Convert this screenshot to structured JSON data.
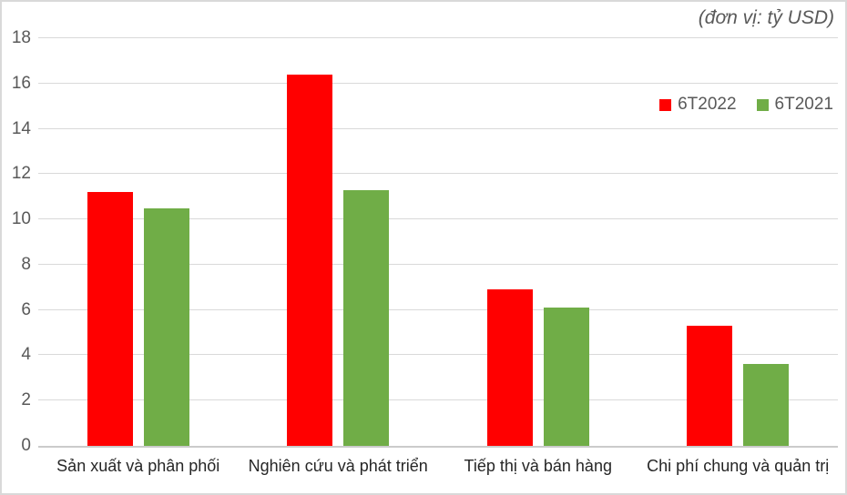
{
  "chart_data": {
    "type": "bar",
    "title": "",
    "unit_note": "(đơn vị: tỷ USD)",
    "categories": [
      "Sản xuất và phân phối",
      "Nghiên cứu và phát triển",
      "Tiếp thị và bán hàng",
      "Chi phí chung và quản trị"
    ],
    "series": [
      {
        "name": "6T2022",
        "color": "#FF0000",
        "values": [
          11.2,
          16.4,
          6.9,
          5.3
        ]
      },
      {
        "name": "6T2021",
        "color": "#70AD47",
        "values": [
          10.5,
          11.3,
          6.1,
          3.6
        ]
      }
    ],
    "xlabel": "",
    "ylabel": "",
    "ylim": [
      0,
      18
    ],
    "ytick_step": 2,
    "yticks": [
      0,
      2,
      4,
      6,
      8,
      10,
      12,
      14,
      16,
      18
    ],
    "grid": true,
    "legend_position": "top-right"
  },
  "styles": {
    "background": "#FFFFFF",
    "border_color": "#D9D9D9",
    "gridline_color": "#D9D9D9",
    "axis_line_color": "#CBCBCB",
    "y_tick_label_color": "#595959",
    "category_label_color": "#262626",
    "legend_text_color": "#595959",
    "annotation_color": "#595959"
  }
}
